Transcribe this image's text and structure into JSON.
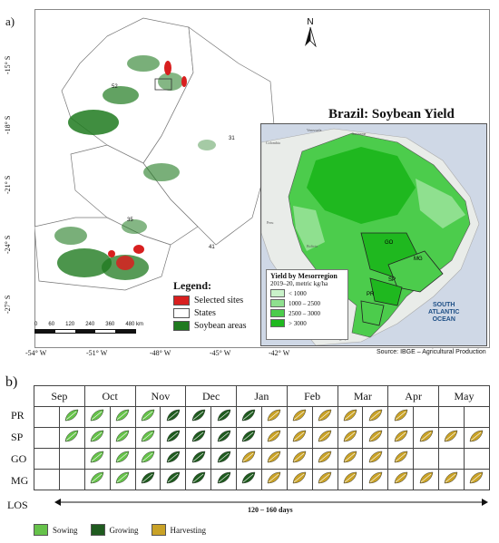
{
  "panel_labels": {
    "a": "a)",
    "b": "b)"
  },
  "map": {
    "lat_ticks": [
      "-15° S",
      "-18° S",
      "-21° S",
      "-24° S",
      "-27° S"
    ],
    "lon_ticks": [
      "-54° W",
      "-51° W",
      "-48° W",
      "-45° W",
      "-42° W"
    ],
    "state_codes": [
      "52",
      "31",
      "35",
      "41"
    ],
    "north_label": "N",
    "scalebar": {
      "ticks": [
        "0",
        "60",
        "120",
        "240",
        "360",
        "480 km"
      ]
    },
    "legend": {
      "title": "Legend:",
      "items": [
        {
          "label": "Selected sites",
          "color": "#d81f1f"
        },
        {
          "label": "States",
          "color": "#ffffff"
        },
        {
          "label": "Soybean areas",
          "color": "#1f7a1f"
        }
      ]
    }
  },
  "inset": {
    "title": "Brazil: Soybean Yield",
    "legend_title": "Yield by Mesorregion",
    "legend_subtitle": "2019–20, metric kg/ha",
    "classes": [
      {
        "label": "< 1000",
        "color": "#c9f2c9"
      },
      {
        "label": "1000 – 2500",
        "color": "#8fe08f"
      },
      {
        "label": "2500 – 3000",
        "color": "#4ccc4c"
      },
      {
        "label": "> 3000",
        "color": "#1fb81f"
      }
    ],
    "state_labels": [
      "GO",
      "MG",
      "SP",
      "PR"
    ],
    "country_labels": [
      "Venezuela",
      "Colombia",
      "Suriname",
      "Peru",
      "Bolivia",
      "Paraguay",
      "Uruguay"
    ],
    "ocean_label": [
      "SOUTH",
      "ATLANTIC",
      "OCEAN"
    ],
    "source": "Source: IBGE – Agricultural Production"
  },
  "calendar": {
    "months": [
      "Sep",
      "Oct",
      "Nov",
      "Dec",
      "Jan",
      "Feb",
      "Mar",
      "Apr",
      "May"
    ],
    "rows": [
      {
        "label": "PR",
        "cells": [
          "",
          "S",
          "S",
          "S",
          "S",
          "G",
          "G",
          "G",
          "G",
          "H",
          "H",
          "H",
          "H",
          "H",
          "H",
          "",
          "",
          ""
        ]
      },
      {
        "label": "SP",
        "cells": [
          "",
          "S",
          "S",
          "S",
          "S",
          "G",
          "G",
          "G",
          "G",
          "H",
          "H",
          "H",
          "H",
          "H",
          "H",
          "H",
          "H",
          "H"
        ]
      },
      {
        "label": "GO",
        "cells": [
          "",
          "",
          "S",
          "S",
          "S",
          "G",
          "G",
          "G",
          "H",
          "H",
          "H",
          "H",
          "H",
          "H",
          "H",
          "",
          "",
          ""
        ]
      },
      {
        "label": "MG",
        "cells": [
          "",
          "",
          "S",
          "S",
          "G",
          "G",
          "G",
          "G",
          "G",
          "H",
          "H",
          "H",
          "H",
          "H",
          "H",
          "H",
          "H",
          "H"
        ]
      }
    ],
    "los_label": "LOS",
    "los_text": "120 – 160 days",
    "legend": [
      {
        "label": "Sowing",
        "color": "#66c24a"
      },
      {
        "label": "Growing",
        "color": "#1f5b1f"
      },
      {
        "label": "Harvesting",
        "color": "#c9a227"
      }
    ]
  }
}
